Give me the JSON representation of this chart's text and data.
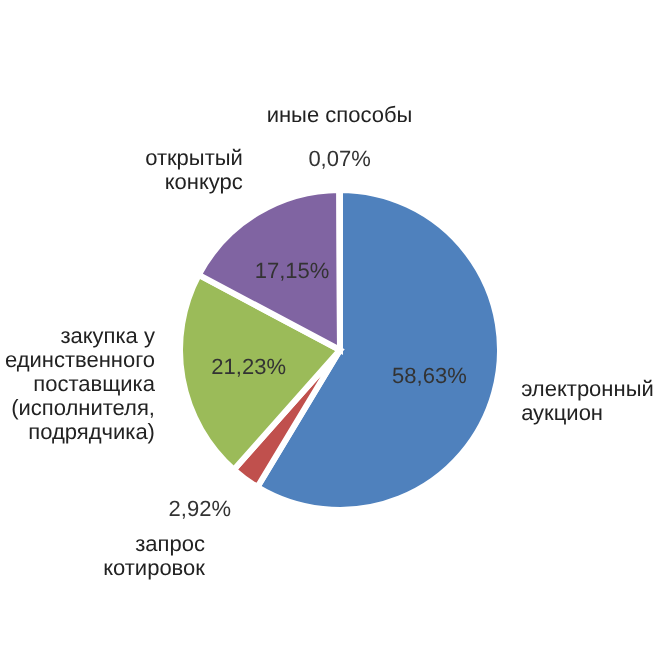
{
  "chart_data": {
    "type": "pie",
    "categories": [
      "электронный аукцион",
      "запрос котировок",
      "закупка у единственного поставщика (исполнителя, подрядчика)",
      "открытый конкурс",
      "иные способы"
    ],
    "values": [
      58.63,
      2.92,
      21.23,
      17.15,
      0.07
    ],
    "colors": [
      "#4f81bd",
      "#c0504d",
      "#9bbb59",
      "#8064a2",
      "#4bacc6"
    ],
    "value_labels": [
      "58,63%",
      "2,92%",
      "21,23%",
      "17,15%",
      "0,07%"
    ]
  }
}
